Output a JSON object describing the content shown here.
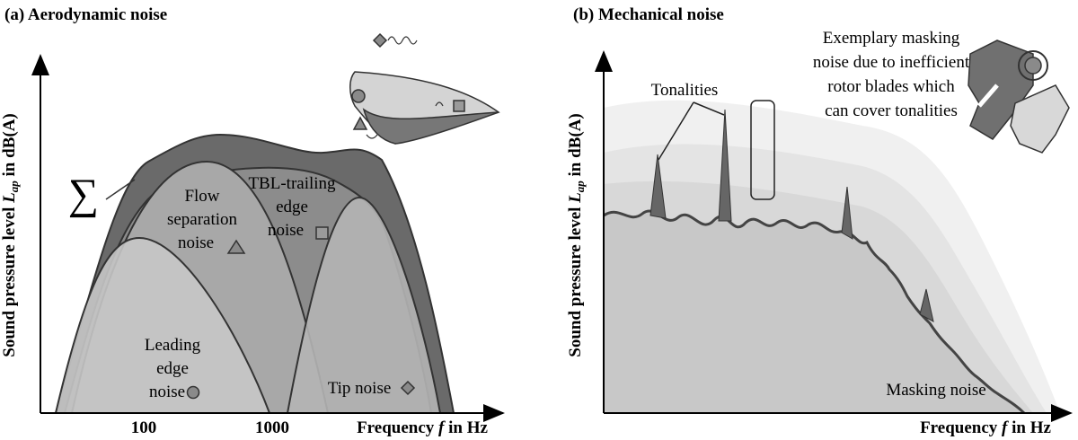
{
  "panel_a": {
    "title": "(a) Aerodynamic noise",
    "y_label": {
      "prefix": "Sound pressure level ",
      "symbol": "L",
      "subscript": "ap",
      "suffix": " in dB(A)"
    },
    "x_label": {
      "prefix": "Frequency ",
      "symbol": "f",
      "suffix": " in Hz"
    },
    "x_ticks": [
      "100",
      "1000"
    ],
    "sum_symbol": "∑",
    "flow_separation": [
      "Flow",
      "separation",
      "noise"
    ],
    "tbl_trailing_edge": [
      "TBL-trailing",
      "edge",
      "noise"
    ],
    "leading_edge": [
      "Leading",
      "edge",
      "noise"
    ],
    "tip_noise": "Tip noise"
  },
  "panel_b": {
    "title": "(b) Mechanical noise",
    "y_label": {
      "prefix": "Sound pressure level ",
      "symbol": "L",
      "subscript": "ap",
      "suffix": " in dB(A)"
    },
    "x_label": {
      "prefix": "Frequency ",
      "symbol": "f",
      "suffix": " in Hz"
    },
    "tonalities": "Tonalities",
    "masking_note": [
      "Exemplary masking",
      "noise due to inefficient",
      "rotor blades which",
      "can cover tonalities"
    ],
    "masking_noise": "Masking noise"
  }
}
